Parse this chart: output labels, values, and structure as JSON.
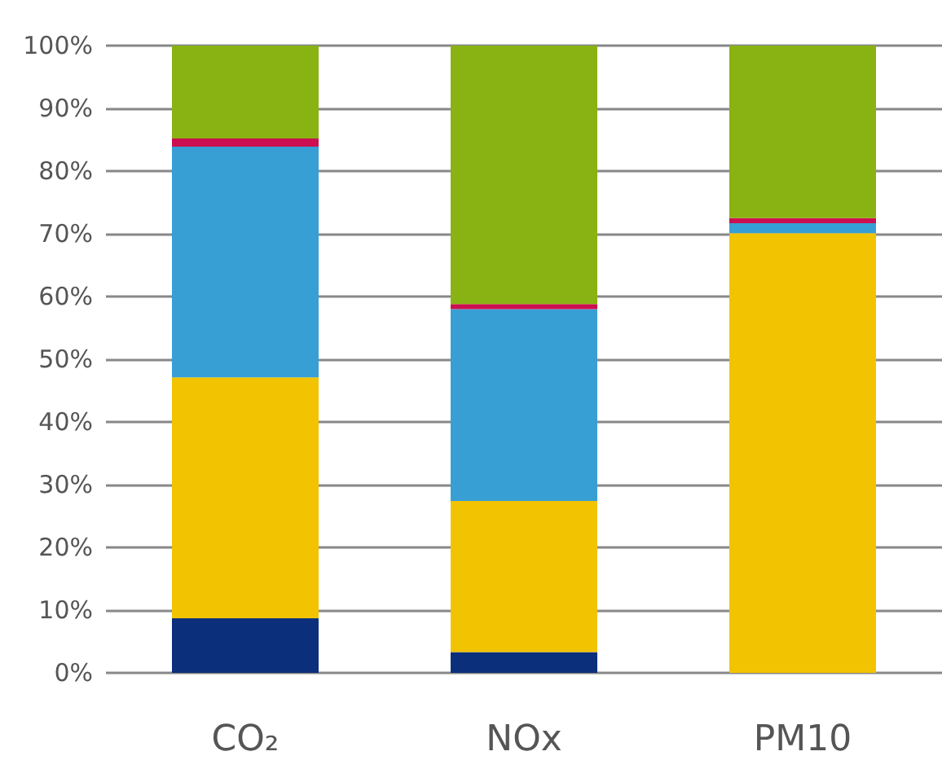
{
  "chart_data": {
    "type": "bar",
    "stacked": true,
    "categories": [
      "CO₂",
      "NOx",
      "PM10"
    ],
    "series": [
      {
        "color": "#0b2f7a",
        "values": [
          8.7,
          3.3,
          0
        ]
      },
      {
        "color": "#f2c300",
        "values": [
          38.4,
          24.1,
          70.1
        ]
      },
      {
        "color": "#389fd5",
        "values": [
          36.8,
          30.6,
          1.6
        ]
      },
      {
        "color": "#cc0f50",
        "values": [
          1.3,
          0.8,
          0.8
        ]
      },
      {
        "color": "#89b213",
        "values": [
          14.8,
          41.2,
          27.5
        ]
      }
    ],
    "ylim": [
      0,
      100
    ],
    "yticks": [
      {
        "value": 0,
        "label": "0%"
      },
      {
        "value": 10,
        "label": "10%"
      },
      {
        "value": 20,
        "label": "20%"
      },
      {
        "value": 30,
        "label": "30%"
      },
      {
        "value": 40,
        "label": "40%"
      },
      {
        "value": 50,
        "label": "50%"
      },
      {
        "value": 60,
        "label": "60%"
      },
      {
        "value": 70,
        "label": "70%"
      },
      {
        "value": 80,
        "label": "80%"
      },
      {
        "value": 90,
        "label": "90%"
      },
      {
        "value": 100,
        "label": "100%"
      }
    ],
    "grid": "y"
  }
}
